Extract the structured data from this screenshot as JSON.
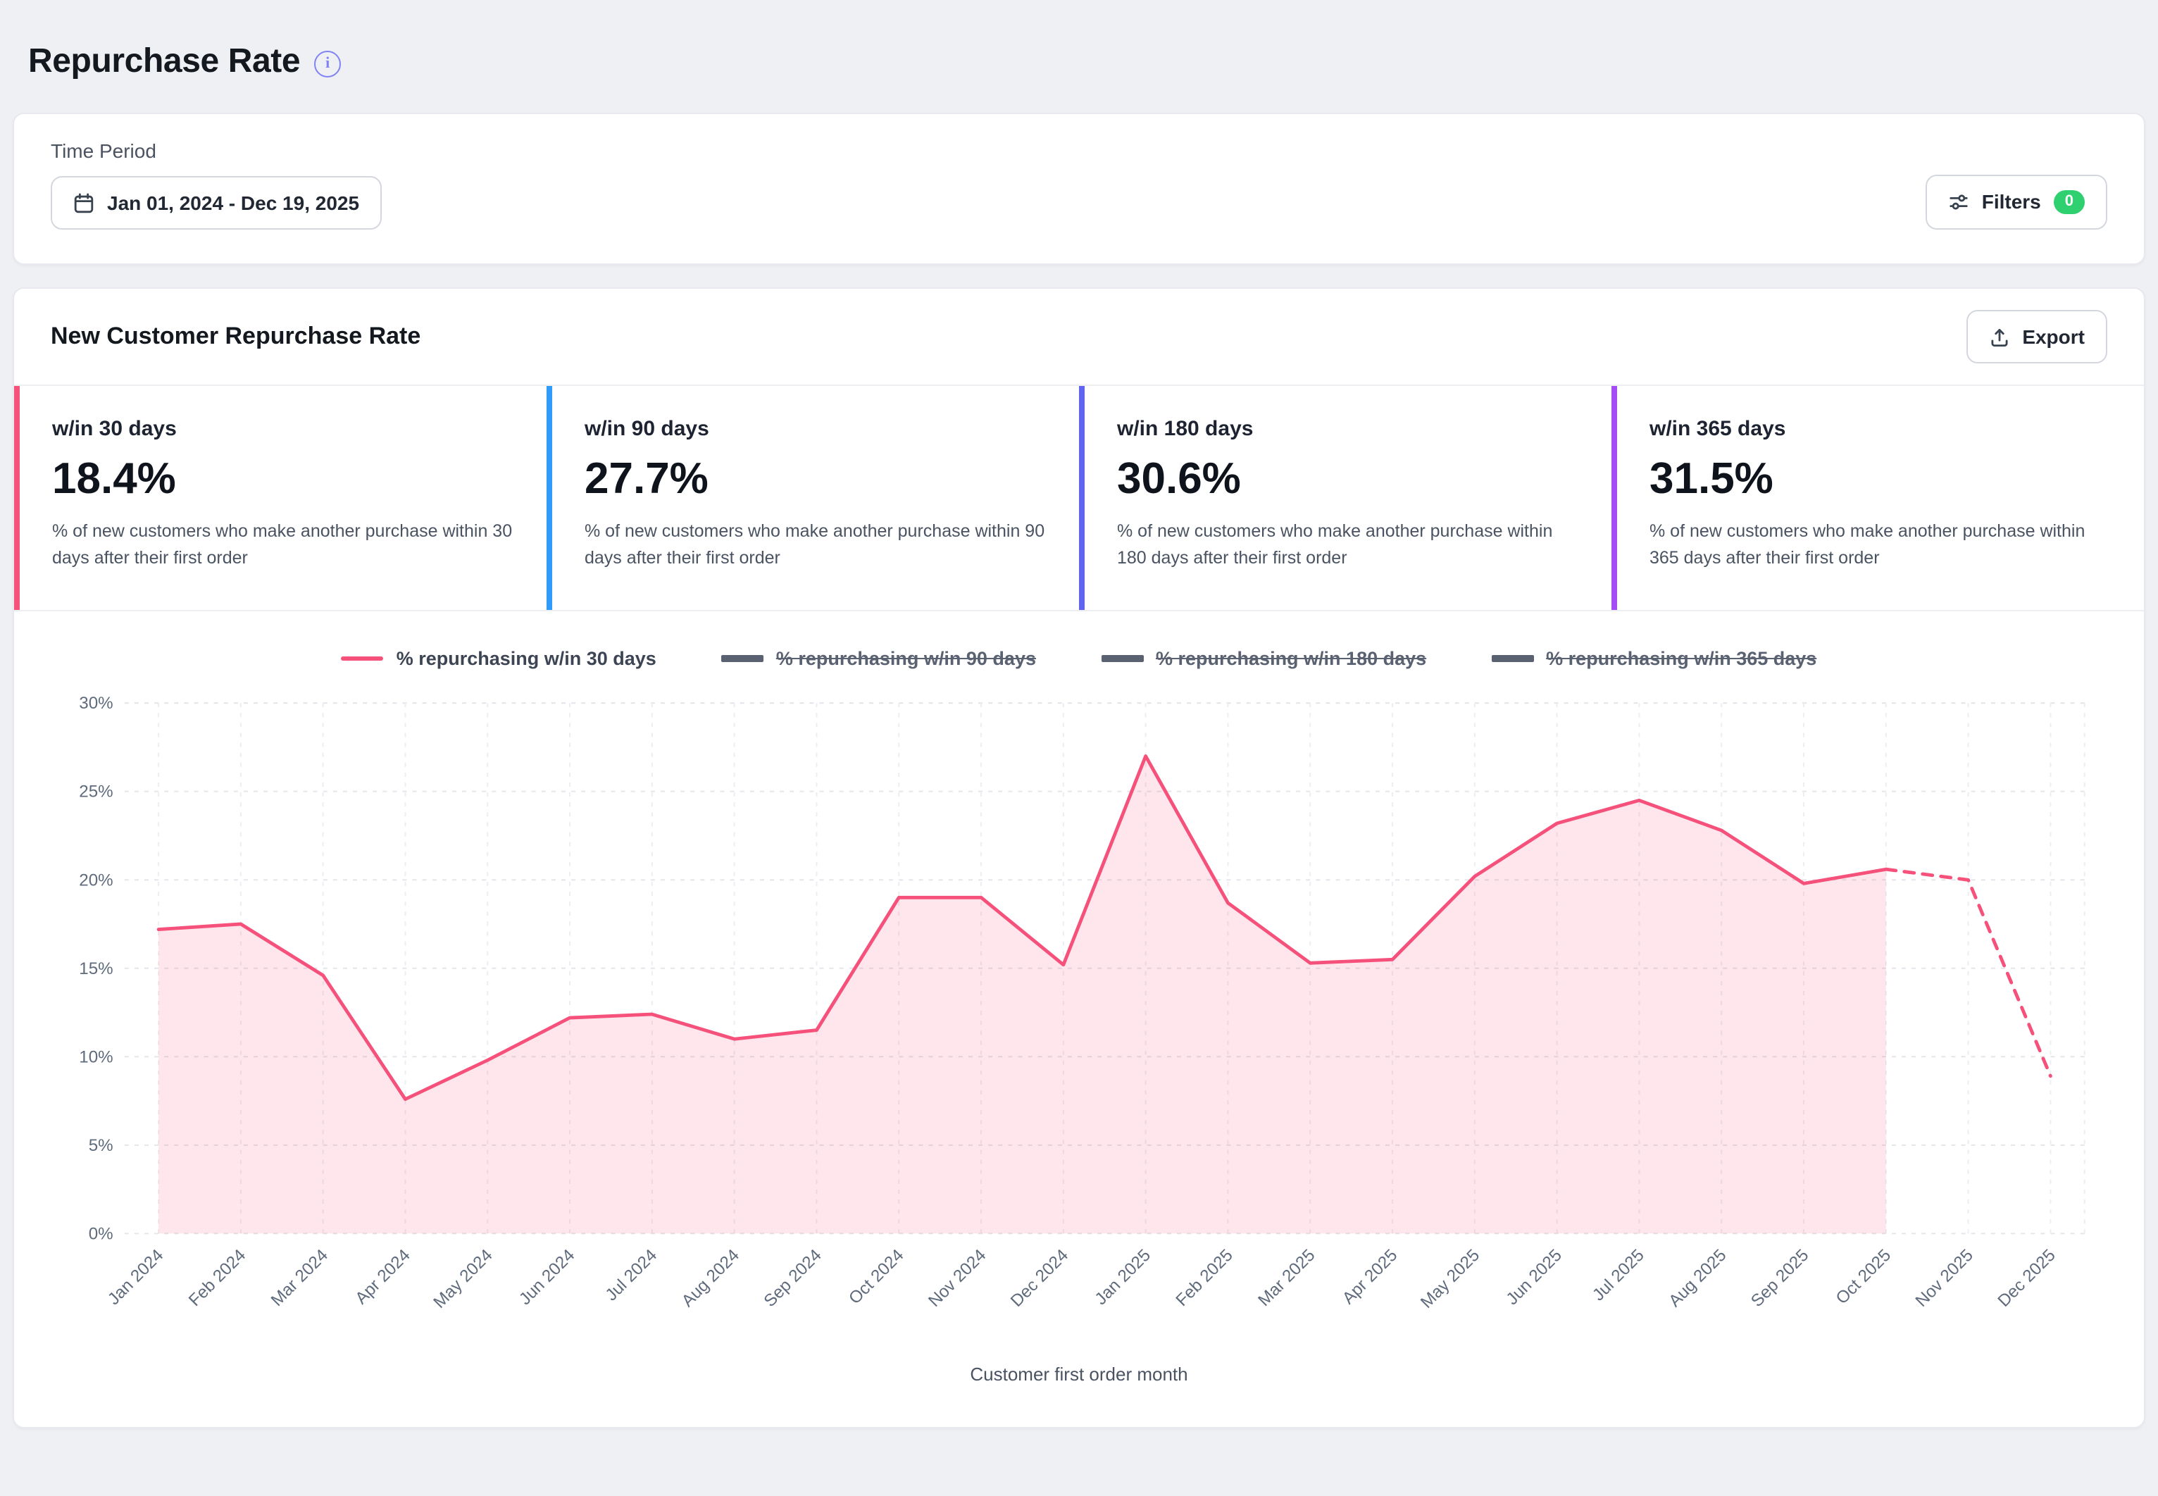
{
  "page": {
    "title": "Repurchase Rate"
  },
  "filters_bar": {
    "time_period_label": "Time Period",
    "date_range": "Jan 01, 2024 - Dec 19, 2025",
    "filters_label": "Filters",
    "filters_count": "0",
    "filters_badge_color": "#2fd06f"
  },
  "panel": {
    "title": "New Customer Repurchase Rate",
    "export_label": "Export"
  },
  "stats": [
    {
      "label": "w/in 30 days",
      "value": "18.4%",
      "description": "% of new customers who make another purchase within 30 days after their first order",
      "accent_color": "#f5517b"
    },
    {
      "label": "w/in 90 days",
      "value": "27.7%",
      "description": "% of new customers who make another purchase within 90 days after their first order",
      "accent_color": "#2f9bfa"
    },
    {
      "label": "w/in 180 days",
      "value": "30.6%",
      "description": "% of new customers who make another purchase within 180 days after their first order",
      "accent_color": "#6163f1"
    },
    {
      "label": "w/in 365 days",
      "value": "31.5%",
      "description": "% of new customers who make another purchase within 365 days after their first order",
      "accent_color": "#a44df5"
    }
  ],
  "legend": [
    {
      "label": "% repurchasing w/in 30 days",
      "active": true,
      "color": "#f5517b"
    },
    {
      "label": "% repurchasing w/in 90 days",
      "active": false,
      "color": "#5a6272"
    },
    {
      "label": "% repurchasing w/in 180 days",
      "active": false,
      "color": "#5a6272"
    },
    {
      "label": "% repurchasing w/in 365 days",
      "active": false,
      "color": "#5a6272"
    }
  ],
  "chart_data": {
    "type": "area",
    "title": "",
    "xlabel": "Customer first order month",
    "ylabel": "",
    "ylim": [
      0,
      30
    ],
    "yticks": [
      0,
      5,
      10,
      15,
      20,
      25,
      30
    ],
    "y_unit": "%",
    "grid": true,
    "legend_position": "top",
    "categories": [
      "Jan 2024",
      "Feb 2024",
      "Mar 2024",
      "Apr 2024",
      "May 2024",
      "Jun 2024",
      "Jul 2024",
      "Aug 2024",
      "Sep 2024",
      "Oct 2024",
      "Nov 2024",
      "Dec 2024",
      "Jan 2025",
      "Feb 2025",
      "Mar 2025",
      "Apr 2025",
      "May 2025",
      "Jun 2025",
      "Jul 2025",
      "Aug 2025",
      "Sep 2025",
      "Oct 2025",
      "Nov 2025",
      "Dec 2025"
    ],
    "series": [
      {
        "name": "% repurchasing w/in 30 days",
        "visible": true,
        "color": "#f5517b",
        "values": [
          17.2,
          17.5,
          14.6,
          7.6,
          9.8,
          12.2,
          12.4,
          11.0,
          11.5,
          19.0,
          19.0,
          15.2,
          27.0,
          18.7,
          15.3,
          15.5,
          20.2,
          23.2,
          24.5,
          22.8,
          19.8,
          20.6,
          20.0,
          8.9
        ],
        "dashed_from_index": 21,
        "fill_to_index": 21
      },
      {
        "name": "% repurchasing w/in 90 days",
        "visible": false
      },
      {
        "name": "% repurchasing w/in 180 days",
        "visible": false
      },
      {
        "name": "% repurchasing w/in 365 days",
        "visible": false
      }
    ]
  }
}
